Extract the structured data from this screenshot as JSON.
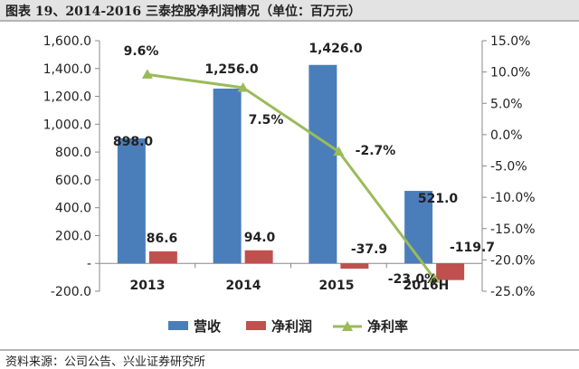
{
  "title": "图表 19、2014-2016 三泰控股净利润情况（单位：百万元）",
  "source": "资料来源：公司公告、兴业证券研究所",
  "chart_data": {
    "type": "bar",
    "categories": [
      "2013",
      "2014",
      "2015",
      "2016H"
    ],
    "series": [
      {
        "name": "营收",
        "kind": "bar",
        "axis": "left",
        "color": "#4a7ebb",
        "values": [
          898.0,
          1256.0,
          1426.0,
          521.0
        ],
        "labels": [
          "898.0",
          "1,256.0",
          "1,426.0",
          "521.0"
        ]
      },
      {
        "name": "净利润",
        "kind": "bar",
        "axis": "left",
        "color": "#c0504d",
        "values": [
          86.6,
          94.0,
          -37.9,
          -119.7
        ],
        "labels": [
          "86.6",
          "94.0",
          "-37.9",
          "-119.7"
        ]
      },
      {
        "name": "净利率",
        "kind": "line",
        "axis": "right",
        "color": "#9bbb59",
        "values": [
          9.6,
          7.5,
          -2.7,
          -23.0
        ],
        "labels": [
          "9.6%",
          "7.5%",
          "-2.7%",
          "-23.0%"
        ]
      }
    ],
    "y_left": {
      "ylim": [
        -200,
        1600
      ],
      "ticks": [
        -200,
        0,
        200,
        400,
        600,
        800,
        1000,
        1200,
        1400,
        1600
      ],
      "tick_labels": [
        "-200.0",
        "-",
        "200.0",
        "400.0",
        "600.0",
        "800.0",
        "1,000.0",
        "1,200.0",
        "1,400.0",
        "1,600.0"
      ]
    },
    "y_right": {
      "ylim": [
        -25,
        15
      ],
      "ticks": [
        -25,
        -20,
        -15,
        -10,
        -5,
        0,
        5,
        10,
        15
      ],
      "tick_labels": [
        "-25.0%",
        "-20.0%",
        "-15.0%",
        "-10.0%",
        "-5.0%",
        "0.0%",
        "5.0%",
        "10.0%",
        "15.0%"
      ]
    },
    "grid": false,
    "legend": "bottom"
  }
}
